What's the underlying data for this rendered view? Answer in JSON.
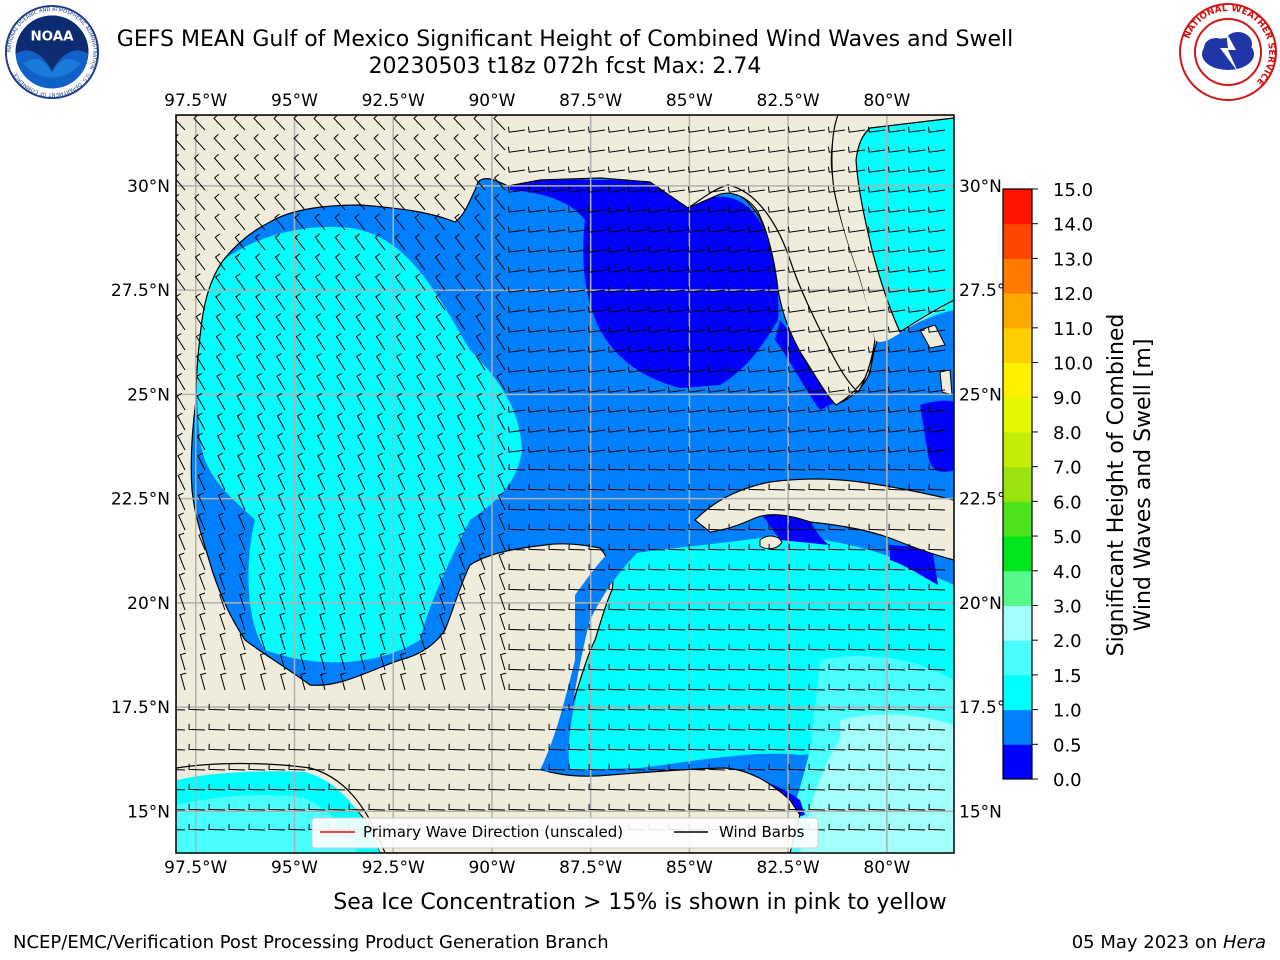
{
  "header": {
    "title_line1": "GEFS MEAN Gulf of Mexico Significant Height of Combined Wind Waves and Swell",
    "title_line2": "20230503 t18z 072h fcst   Max: 2.74"
  },
  "logos": {
    "left": {
      "name": "noaa-logo-icon",
      "text": "NOAA",
      "ring_text": "NATIONAL OCEANIC AND ATMOSPHERIC ADMINISTRATION · U.S. DEPARTMENT OF COMMERCE"
    },
    "right": {
      "name": "nws-logo-icon",
      "ring_text": "NATIONAL WEATHER SERVICE"
    }
  },
  "map": {
    "lon_ticks": [
      "97.5°W",
      "95°W",
      "92.5°W",
      "90°W",
      "87.5°W",
      "85°W",
      "82.5°W",
      "80°W"
    ],
    "lat_ticks": [
      "30°N",
      "27.5°N",
      "25°N",
      "22.5°N",
      "20°N",
      "17.5°N",
      "15°N"
    ],
    "lon_range": [
      -98,
      -78.3
    ],
    "lat_range": [
      14,
      31.7
    ],
    "colors": {
      "land": "#efecdc",
      "ocean_default": "#0080ff"
    }
  },
  "colorbar": {
    "title_line1": "Significant Height of Combined",
    "title_line2": "Wind Waves and Swell [m]",
    "tick_labels": [
      "0.0",
      "0.5",
      "1.0",
      "1.5",
      "2.0",
      "3.0",
      "4.0",
      "5.0",
      "6.0",
      "7.0",
      "8.0",
      "9.0",
      "10.0",
      "11.0",
      "12.0",
      "13.0",
      "14.0",
      "15.0"
    ],
    "colors": [
      "#0000ff",
      "#0080ff",
      "#00ffff",
      "#4cffff",
      "#a3fffb",
      "#56f98a",
      "#00e61e",
      "#4ee31a",
      "#9be30f",
      "#c4ee08",
      "#e6f800",
      "#fff200",
      "#ffd000",
      "#ffa800",
      "#ff7a00",
      "#ff4600",
      "#ff1400"
    ]
  },
  "legend": {
    "wave_label": "Primary Wave Direction (unscaled)",
    "barb_label": "Wind Barbs"
  },
  "footer": {
    "note": "Sea Ice Concentration > 15% is shown in pink to yellow",
    "left": "NCEP/EMC/Verification Post Processing Product Generation Branch",
    "right_prefix": "05 May 2023 on ",
    "right_host": "Hera"
  }
}
